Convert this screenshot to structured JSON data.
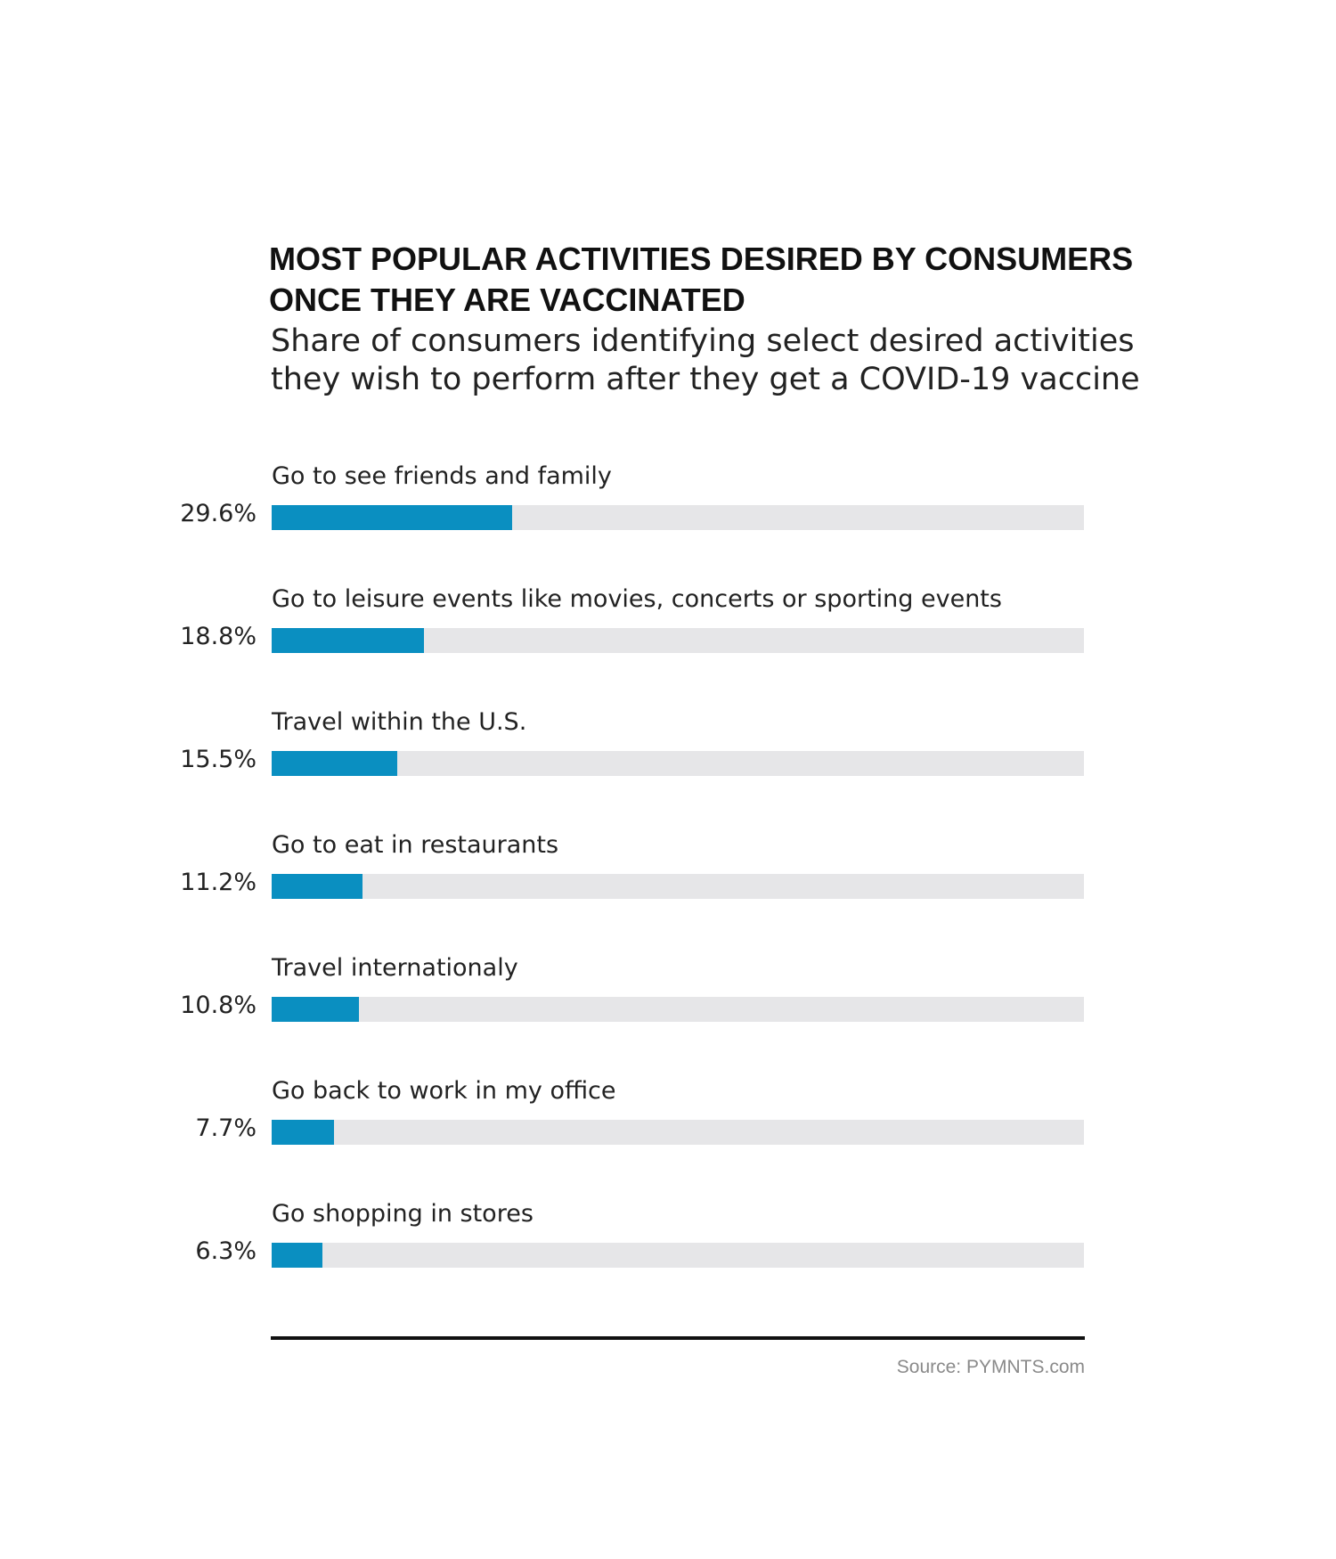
{
  "colors": {
    "bar_fill": "#0a8fc1",
    "bar_track": "#e6e6e8"
  },
  "chart_data": {
    "type": "bar",
    "orientation": "horizontal",
    "title": "MOST POPULAR ACTIVITIES DESIRED BY CONSUMERS ONCE THEY ARE VACCINATED",
    "subtitle": "Share of consumers identifying select desired activities they wish to perform after they get a COVID-19 vaccine",
    "categories": [
      "Go to see friends and family",
      "Go to leisure events like movies, concerts or sporting events",
      "Travel within the U.S.",
      "Go to eat in restaurants",
      "Travel internationaly",
      "Go back to work in my office",
      "Go shopping in stores"
    ],
    "values": [
      29.6,
      18.8,
      15.5,
      11.2,
      10.8,
      7.7,
      6.3
    ],
    "value_labels": [
      "29.6%",
      "18.8%",
      "15.5%",
      "11.2%",
      "10.8%",
      "7.7%",
      "6.3%"
    ],
    "xlim": [
      0,
      100
    ],
    "grid": false,
    "legend": "none"
  },
  "source": "Source: PYMNTS.com"
}
